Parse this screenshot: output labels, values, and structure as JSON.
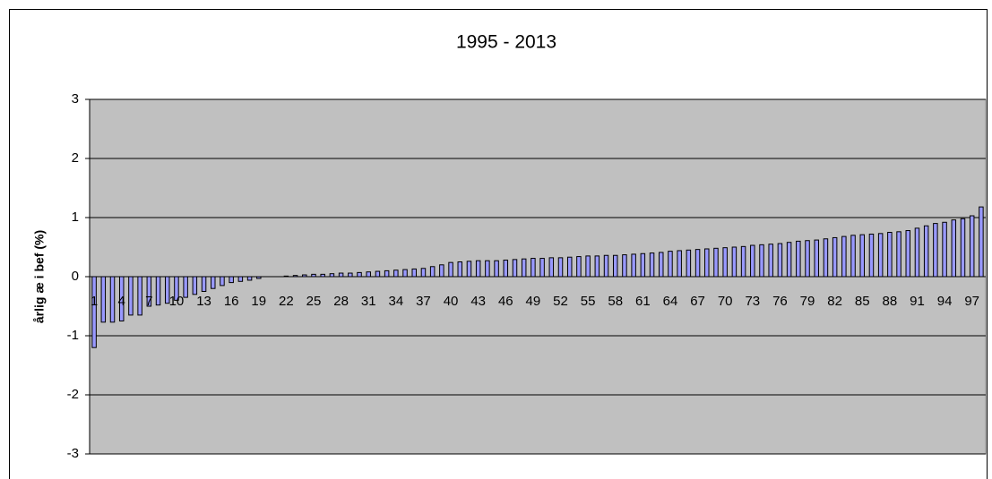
{
  "chart_data": {
    "type": "bar",
    "title": "1995 - 2013",
    "y_label": "årlig æ i bef (%)",
    "categories": [
      1,
      null,
      null,
      4,
      null,
      null,
      7,
      null,
      null,
      10,
      null,
      null,
      13,
      null,
      null,
      16,
      null,
      null,
      19,
      null,
      null,
      22,
      null,
      null,
      25,
      null,
      null,
      28,
      null,
      null,
      31,
      null,
      null,
      34,
      null,
      null,
      37,
      null,
      null,
      40,
      null,
      null,
      43,
      null,
      null,
      46,
      null,
      null,
      49,
      null,
      null,
      52,
      null,
      null,
      55,
      null,
      null,
      58,
      null,
      null,
      61,
      null,
      null,
      64,
      null,
      null,
      67,
      null,
      null,
      70,
      null,
      null,
      73,
      null,
      null,
      76,
      null,
      null,
      79,
      null,
      null,
      82,
      null,
      null,
      85,
      null,
      null,
      88,
      null,
      null,
      91,
      null,
      null,
      94,
      null,
      null,
      97,
      null
    ],
    "values": [
      -1.2,
      -0.77,
      -0.77,
      -0.75,
      -0.65,
      -0.65,
      -0.5,
      -0.48,
      -0.45,
      -0.4,
      -0.35,
      -0.3,
      -0.25,
      -0.2,
      -0.15,
      -0.1,
      -0.08,
      -0.06,
      -0.03,
      0,
      0,
      0.01,
      0.02,
      0.03,
      0.04,
      0.04,
      0.05,
      0.06,
      0.06,
      0.07,
      0.08,
      0.09,
      0.1,
      0.11,
      0.12,
      0.13,
      0.14,
      0.17,
      0.2,
      0.24,
      0.25,
      0.26,
      0.27,
      0.27,
      0.27,
      0.28,
      0.29,
      0.3,
      0.31,
      0.31,
      0.32,
      0.32,
      0.33,
      0.34,
      0.35,
      0.35,
      0.36,
      0.36,
      0.37,
      0.38,
      0.39,
      0.4,
      0.41,
      0.43,
      0.44,
      0.45,
      0.46,
      0.47,
      0.48,
      0.49,
      0.5,
      0.51,
      0.53,
      0.54,
      0.55,
      0.56,
      0.58,
      0.6,
      0.61,
      0.62,
      0.64,
      0.66,
      0.68,
      0.7,
      0.71,
      0.72,
      0.73,
      0.75,
      0.76,
      0.78,
      0.82,
      0.86,
      0.9,
      0.92,
      0.96,
      0.98,
      1.03,
      1.18
    ],
    "color": "#9999ff",
    "ylim": [
      -3,
      3
    ],
    "yticks": [
      -3,
      -2,
      -1,
      0,
      1,
      2,
      3
    ],
    "grid": true
  }
}
